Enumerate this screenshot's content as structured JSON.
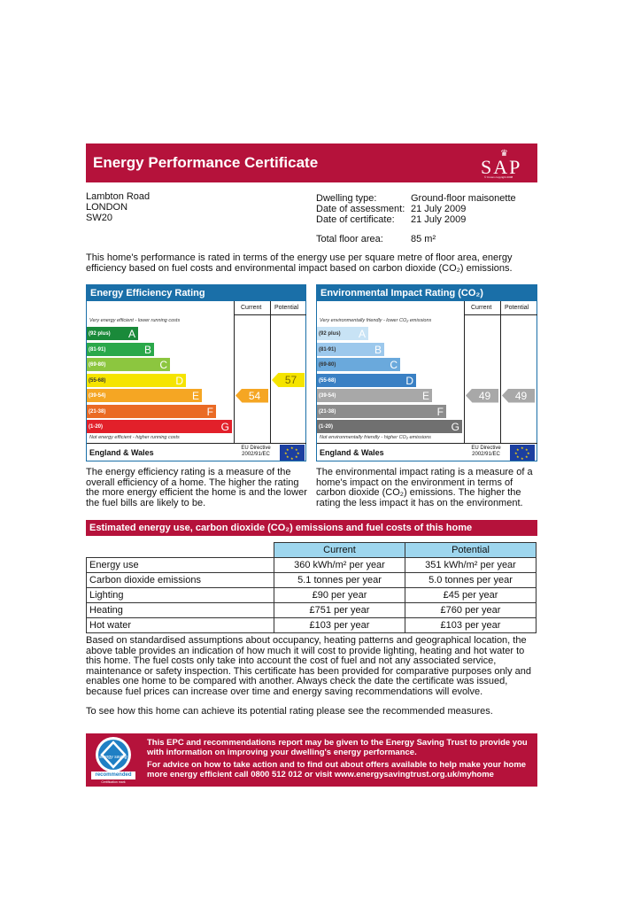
{
  "header": {
    "title": "Energy Performance Certificate",
    "logo_text": "SAP",
    "logo_small": "© Crown copyright 2008"
  },
  "address": {
    "line1": "Lambton Road",
    "line2": "LONDON",
    "line3": "SW20"
  },
  "details": [
    {
      "label": "Dwelling type:",
      "value": "Ground-floor maisonette"
    },
    {
      "label": "Date of assessment:",
      "value": "21 July 2009"
    },
    {
      "label": "Date of certificate:",
      "value": "21 July 2009"
    },
    {
      "label": "Total floor area:",
      "value": "85 m²"
    }
  ],
  "intro": "This home's performance is rated in terms of the energy use per square metre of floor area, energy efficiency based on fuel costs and environmental impact based on carbon dioxide (CO₂) emissions.",
  "energy_rating": {
    "heading": "Energy Efficiency Rating",
    "col_current": "Current",
    "col_potential": "Potential",
    "top_note": "Very energy efficient - lower running costs",
    "bottom_note": "Not energy efficient - higher running costs",
    "bands": [
      {
        "range": "(92 plus)",
        "letter": "A",
        "color": "#1a8a3a"
      },
      {
        "range": "(81-91)",
        "letter": "B",
        "color": "#2aa84a"
      },
      {
        "range": "(69-80)",
        "letter": "C",
        "color": "#8cc63f"
      },
      {
        "range": "(55-68)",
        "letter": "D",
        "color": "#f5e400"
      },
      {
        "range": "(39-54)",
        "letter": "E",
        "color": "#f5a623"
      },
      {
        "range": "(21-38)",
        "letter": "F",
        "color": "#ea6a24"
      },
      {
        "range": "(1-20)",
        "letter": "G",
        "color": "#e2202a"
      }
    ],
    "current": "54",
    "current_color": "#f5a623",
    "potential": "57",
    "potential_color": "#f5e400",
    "footer_left": "England & Wales",
    "footer_directive": "EU Directive 2002/91/EC"
  },
  "env_rating": {
    "heading": "Environmental Impact Rating (CO₂)",
    "col_current": "Current",
    "col_potential": "Potential",
    "top_note": "Very environmentally friendly - lower CO₂ emissions",
    "bottom_note": "Not environmentally friendly - higher CO₂ emissions",
    "bands": [
      {
        "range": "(92 plus)",
        "letter": "A",
        "color": "#c8e3f5"
      },
      {
        "range": "(81-91)",
        "letter": "B",
        "color": "#9cc8ec"
      },
      {
        "range": "(69-80)",
        "letter": "C",
        "color": "#6aa9dc"
      },
      {
        "range": "(55-68)",
        "letter": "D",
        "color": "#3a80c4"
      },
      {
        "range": "(39-54)",
        "letter": "E",
        "color": "#a8a8a8"
      },
      {
        "range": "(21-38)",
        "letter": "F",
        "color": "#8c8c8c"
      },
      {
        "range": "(1-20)",
        "letter": "G",
        "color": "#707070"
      }
    ],
    "current": "49",
    "current_color": "#a8a8a8",
    "potential": "49",
    "potential_color": "#a8a8a8",
    "footer_left": "England & Wales",
    "footer_directive": "EU Directive 2002/91/EC"
  },
  "energy_desc": "The energy efficiency rating is a measure of the overall efficiency of a home. The higher the rating the more energy efficient the home is and the lower the fuel bills are likely to be.",
  "env_desc": "The environmental impact rating is a measure of a home's impact on the environment in terms of carbon dioxide (CO₂) emissions. The higher the rating the less impact it has on the environment.",
  "costs": {
    "heading": "Estimated energy use, carbon dioxide (CO₂) emissions and fuel costs of this home",
    "col_current": "Current",
    "col_potential": "Potential",
    "rows": [
      {
        "label": "Energy use",
        "current": "360 kWh/m² per year",
        "potential": "351 kWh/m² per year"
      },
      {
        "label": "Carbon dioxide emissions",
        "current": "5.1 tonnes per year",
        "potential": "5.0 tonnes per year"
      },
      {
        "label": "Lighting",
        "current": "£90 per year",
        "potential": "£45 per year"
      },
      {
        "label": "Heating",
        "current": "£751 per year",
        "potential": "£760 per year"
      },
      {
        "label": "Hot water",
        "current": "£103 per year",
        "potential": "£103 per year"
      }
    ]
  },
  "body_text": "Based on standardised assumptions about occupancy, heating patterns and geographical location, the above table provides an indication of how much it will cost to provide lighting, heating and hot water to this home. The fuel costs only take into account the cost of fuel and not any associated service, maintenance or safety inspection. This certificate has been provided for comparative purposes only and enables one home to be compared with another. Always check the date the certificate was issued, because fuel prices can increase over time and energy saving recommendations will evolve.",
  "see_text": "To see how this home can achieve its potential rating please see the recommended measures.",
  "est": {
    "logo_top": "energy saving",
    "logo_label": "recommended",
    "logo_mark": "Certification mark",
    "line1": "This EPC and recommendations report may be given to the Energy Saving Trust to provide you with information on improving your dwelling's energy performance.",
    "line2": "For advice on how to take action and to find out about offers available to help make your home more energy efficient call 0800 512 012 or visit www.energysavingtrust.org.uk/myhome"
  }
}
